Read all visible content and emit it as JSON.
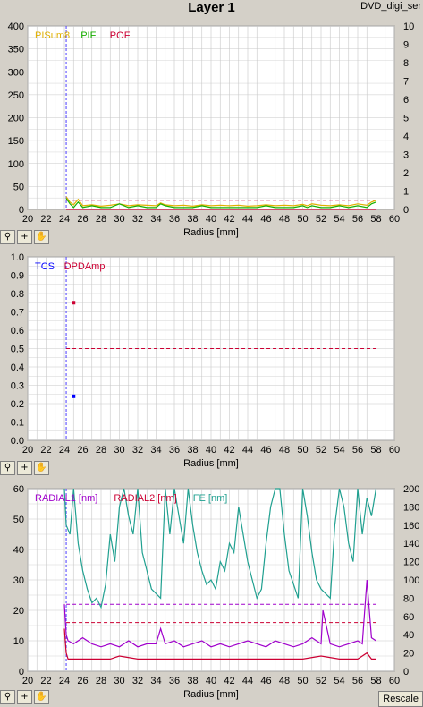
{
  "page": {
    "title": "Layer 1",
    "subtitle": "DVD_digi_ser",
    "rescale_label": "Rescale"
  },
  "toolbar": {
    "zoom_icon": "magnifier-icon",
    "crosshair_icon": "crosshair-icon",
    "pan_icon": "hand-icon"
  },
  "colors": {
    "background": "#d4d0c8",
    "plot_bg": "#ffffff",
    "grid": "#c8c8c8",
    "boundary": "#4b3cff",
    "pisum8": "#e0b000",
    "pif": "#18b000",
    "pof": "#cc0033",
    "tcs": "#0000ff",
    "dpdamp": "#cc0033",
    "radial1": "#a000cc",
    "radial2": "#cc0033",
    "fe": "#20a090"
  },
  "chart_data": [
    {
      "type": "line",
      "xlabel": "Radius [mm]",
      "xlim": [
        20,
        60
      ],
      "ylim": [
        0,
        400
      ],
      "y2lim": [
        0,
        10
      ],
      "x_ticks": [
        "20",
        "22",
        "24",
        "26",
        "28",
        "30",
        "32",
        "34",
        "36",
        "38",
        "40",
        "42",
        "44",
        "46",
        "48",
        "50",
        "52",
        "54",
        "56",
        "58",
        "60"
      ],
      "y_ticks": [
        "0",
        "50",
        "100",
        "150",
        "200",
        "250",
        "300",
        "350",
        "400"
      ],
      "y2_ticks": [
        "0",
        "1",
        "2",
        "3",
        "4",
        "5",
        "6",
        "7",
        "8",
        "9",
        "10"
      ],
      "grid": true,
      "legend": [
        "PISum8",
        "PIF",
        "POF"
      ],
      "boundaries_x": [
        24.2,
        58.0
      ],
      "threshold_lines": [
        {
          "series": "PISum8",
          "axis": "y",
          "value": 280
        },
        {
          "series": "POF",
          "axis": "y",
          "value": 20
        }
      ],
      "series": [
        {
          "name": "PISum8",
          "axis": "y",
          "x": [
            24.2,
            24.6,
            25,
            25.5,
            26,
            27,
            28,
            29,
            30,
            31,
            32,
            33,
            34,
            34.5,
            35,
            36,
            37,
            38,
            39,
            40,
            41,
            42,
            43,
            44,
            45,
            46,
            47,
            48,
            49,
            50,
            50.5,
            51,
            52,
            53,
            54,
            55,
            56,
            57,
            57.5,
            58
          ],
          "values": [
            28,
            16,
            10,
            22,
            8,
            10,
            7,
            9,
            12,
            8,
            10,
            9,
            8,
            14,
            10,
            8,
            9,
            7,
            10,
            8,
            9,
            8,
            9,
            7,
            8,
            10,
            8,
            9,
            8,
            11,
            8,
            12,
            9,
            8,
            10,
            8,
            12,
            9,
            16,
            20
          ]
        },
        {
          "name": "PIF",
          "axis": "y2",
          "x": [
            24.2,
            24.6,
            25,
            25.5,
            26,
            27,
            28,
            29,
            30,
            31,
            32,
            33,
            34,
            34.5,
            35,
            36,
            37,
            38,
            39,
            40,
            41,
            42,
            43,
            44,
            45,
            46,
            47,
            48,
            49,
            50,
            50.5,
            51,
            52,
            53,
            54,
            55,
            56,
            57,
            57.5,
            58
          ],
          "values": [
            0.6,
            0.3,
            0.1,
            0.4,
            0.1,
            0.2,
            0.1,
            0.1,
            0.3,
            0.1,
            0.2,
            0.1,
            0.1,
            0.3,
            0.2,
            0.1,
            0.1,
            0.1,
            0.2,
            0.1,
            0.1,
            0.1,
            0.1,
            0.1,
            0.1,
            0.2,
            0.1,
            0.1,
            0.1,
            0.2,
            0.1,
            0.2,
            0.1,
            0.1,
            0.2,
            0.1,
            0.2,
            0.1,
            0.3,
            0.4
          ]
        },
        {
          "name": "POF",
          "axis": "y2",
          "x": [
            24.2,
            58
          ],
          "values": [
            0,
            0
          ]
        }
      ]
    },
    {
      "type": "scatter",
      "xlabel": "Radius [mm]",
      "xlim": [
        20,
        60
      ],
      "ylim": [
        0,
        1.0
      ],
      "x_ticks": [
        "20",
        "22",
        "24",
        "26",
        "28",
        "30",
        "32",
        "34",
        "36",
        "38",
        "40",
        "42",
        "44",
        "46",
        "48",
        "50",
        "52",
        "54",
        "56",
        "58",
        "60"
      ],
      "y_ticks": [
        "0.0",
        "0.1",
        "0.2",
        "0.3",
        "0.4",
        "0.5",
        "0.6",
        "0.7",
        "0.8",
        "0.9",
        "1.0"
      ],
      "grid": true,
      "legend": [
        "TCS",
        "DPDAmp"
      ],
      "boundaries_x": [
        24.2,
        58.0
      ],
      "threshold_lines": [
        {
          "series": "TCS",
          "value": 0.1
        },
        {
          "series": "DPDAmp",
          "value": 0.5
        }
      ],
      "series": [
        {
          "name": "TCS",
          "x": [
            25
          ],
          "values": [
            0.24
          ]
        },
        {
          "name": "DPDAmp",
          "x": [
            25
          ],
          "values": [
            0.75
          ]
        }
      ]
    },
    {
      "type": "line",
      "xlabel": "Radius [mm]",
      "xlim": [
        20,
        60
      ],
      "ylim": [
        0,
        60
      ],
      "y2lim": [
        0,
        200
      ],
      "x_ticks": [
        "20",
        "22",
        "24",
        "26",
        "28",
        "30",
        "32",
        "34",
        "36",
        "38",
        "40",
        "42",
        "44",
        "46",
        "48",
        "50",
        "52",
        "54",
        "56",
        "58",
        "60"
      ],
      "y_ticks": [
        "0",
        "10",
        "20",
        "30",
        "40",
        "50",
        "60"
      ],
      "y2_ticks": [
        "0",
        "20",
        "40",
        "60",
        "80",
        "100",
        "120",
        "140",
        "160",
        "180",
        "200"
      ],
      "grid": true,
      "legend": [
        "RADIAL1 [nm]",
        "RADIAL2 [nm]",
        "FE [nm]"
      ],
      "boundaries_x": [
        24.2,
        58.0
      ],
      "threshold_lines": [
        {
          "series": "RADIAL1 [nm]",
          "value": 22
        },
        {
          "series": "RADIAL2 [nm]",
          "value": 16
        }
      ],
      "series": [
        {
          "name": "RADIAL1 [nm]",
          "axis": "y",
          "x": [
            24.0,
            24.2,
            24.4,
            25,
            26,
            27,
            28,
            29,
            30,
            31,
            32,
            33,
            34,
            34.5,
            35,
            36,
            37,
            38,
            39,
            40,
            41,
            42,
            43,
            44,
            45,
            46,
            47,
            48,
            49,
            50,
            51,
            52,
            52.2,
            53,
            54,
            55,
            56,
            56.5,
            57,
            57.5,
            58
          ],
          "values": [
            22,
            12,
            10,
            9,
            11,
            9,
            8,
            9,
            8,
            10,
            8,
            9,
            9,
            14,
            9,
            10,
            8,
            9,
            10,
            8,
            9,
            8,
            9,
            10,
            9,
            8,
            10,
            9,
            8,
            9,
            11,
            9,
            20,
            9,
            8,
            9,
            10,
            9,
            30,
            11,
            10
          ]
        },
        {
          "name": "RADIAL2 [nm]",
          "axis": "y",
          "x": [
            24.0,
            24.2,
            24.4,
            25,
            26,
            27,
            28,
            29,
            30,
            32,
            34,
            36,
            38,
            40,
            42,
            44,
            46,
            48,
            50,
            52,
            54,
            56,
            57,
            57.5,
            58
          ],
          "values": [
            14,
            6,
            4,
            4,
            4,
            4,
            4,
            4,
            5,
            4,
            4,
            4,
            4,
            4,
            4,
            4,
            4,
            4,
            4,
            5,
            4,
            4,
            6,
            4,
            4
          ]
        },
        {
          "name": "FE [nm]",
          "axis": "y2",
          "x": [
            24.0,
            24.2,
            24.6,
            25,
            25.5,
            26,
            26.5,
            27,
            27.5,
            28,
            28.5,
            29,
            29.5,
            30,
            30.5,
            31,
            31.5,
            32,
            32.5,
            33,
            33.5,
            34,
            34.5,
            35,
            35.5,
            36,
            36.5,
            37,
            37.5,
            38,
            38.5,
            39,
            39.5,
            40,
            40.5,
            41,
            41.5,
            42,
            42.5,
            43,
            43.5,
            44,
            44.5,
            45,
            45.5,
            46,
            46.5,
            47,
            47.5,
            48,
            48.5,
            49,
            49.5,
            50,
            50.5,
            51,
            51.5,
            52,
            52.5,
            53,
            53.5,
            54,
            54.5,
            55,
            55.5,
            56,
            56.5,
            57,
            57.5,
            58
          ],
          "values": [
            200,
            160,
            150,
            200,
            140,
            110,
            90,
            75,
            80,
            70,
            95,
            150,
            120,
            180,
            200,
            170,
            150,
            200,
            130,
            110,
            90,
            85,
            80,
            200,
            150,
            200,
            170,
            140,
            200,
            160,
            130,
            110,
            95,
            100,
            90,
            120,
            110,
            140,
            130,
            180,
            150,
            120,
            100,
            80,
            90,
            140,
            180,
            200,
            200,
            150,
            110,
            95,
            80,
            200,
            170,
            130,
            100,
            90,
            85,
            80,
            160,
            200,
            180,
            140,
            120,
            200,
            150,
            190,
            170,
            200
          ]
        }
      ]
    }
  ]
}
